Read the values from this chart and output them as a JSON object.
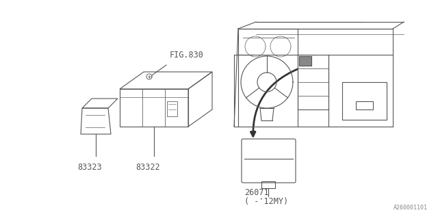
{
  "background_color": "#ffffff",
  "line_color": "#555555",
  "text_color": "#555555",
  "fig_width": 6.4,
  "fig_height": 3.2,
  "dpi": 100,
  "watermark": "A260001101"
}
